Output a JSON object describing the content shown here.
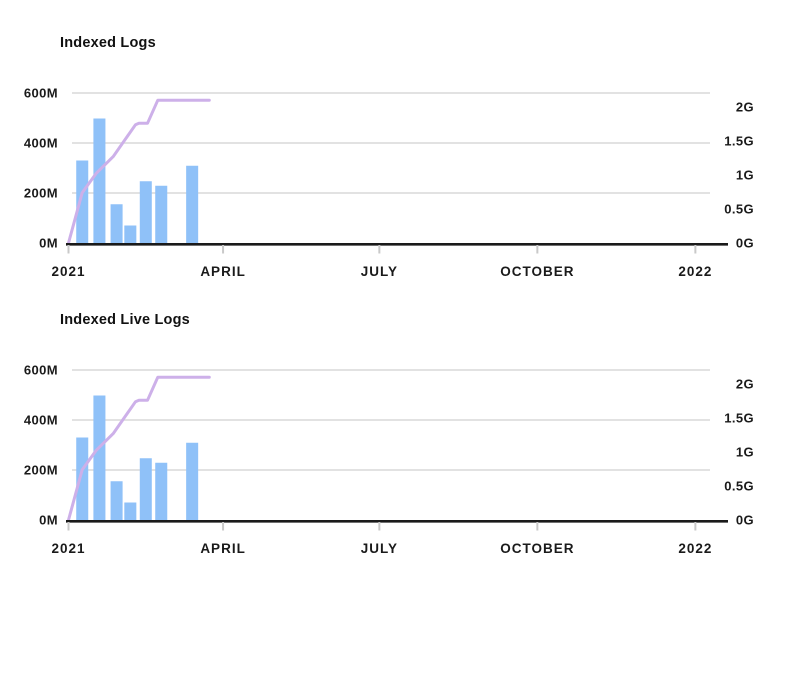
{
  "page": {
    "background": "#FFFFFF"
  },
  "colors": {
    "bar": "#8FC1F8",
    "line": "#CDB0E9",
    "gridline": "#D9D9D9",
    "axis_line": "#1A1A1A",
    "tick_mark": "#C9C9C9",
    "label": "#1A1A1A",
    "title": "#111111",
    "background": "#FFFFFF"
  },
  "chart_data": [
    {
      "type": "bar+line",
      "title": "Indexed Logs",
      "grid": "horizontal-only",
      "legend": "none",
      "x_axis": {
        "range_days": [
          0,
          384
        ],
        "ticks": [
          {
            "label": "2021",
            "day": 0
          },
          {
            "label": "APRIL",
            "day": 90
          },
          {
            "label": "JULY",
            "day": 181
          },
          {
            "label": "OCTOBER",
            "day": 273
          },
          {
            "label": "2022",
            "day": 365
          }
        ]
      },
      "left_axis": {
        "unit": "M",
        "range_m": [
          0,
          620
        ],
        "ticks": [
          {
            "label": "0M",
            "value_m": 0
          },
          {
            "label": "200M",
            "value_m": 200
          },
          {
            "label": "400M",
            "value_m": 400
          },
          {
            "label": "600M",
            "value_m": 600
          }
        ]
      },
      "right_axis": {
        "unit": "G",
        "m_per_g": 272,
        "ticks": [
          {
            "label": "0G",
            "value_g": 0
          },
          {
            "label": "0.5G",
            "value_g": 0.5
          },
          {
            "label": "1G",
            "value_g": 1
          },
          {
            "label": "1.5G",
            "value_g": 1.5
          },
          {
            "label": "2G",
            "value_g": 2
          }
        ]
      },
      "bars": {
        "name": "indexed-log-events",
        "axis": "left",
        "color": "#8FC1F8",
        "width_days": 7,
        "points": [
          {
            "day": 8,
            "value_m": 330
          },
          {
            "day": 18,
            "value_m": 498
          },
          {
            "day": 28,
            "value_m": 155
          },
          {
            "day": 36,
            "value_m": 70
          },
          {
            "day": 45,
            "value_m": 247
          },
          {
            "day": 54,
            "value_m": 229
          },
          {
            "day": 72,
            "value_m": 309
          }
        ]
      },
      "line": {
        "name": "cumulative-indexed-volume",
        "axis": "right",
        "color": "#CDB0E9",
        "points": [
          {
            "day": 0,
            "value_g": 0
          },
          {
            "day": 8,
            "value_g": 0.74
          },
          {
            "day": 16,
            "value_g": 1.02
          },
          {
            "day": 26,
            "value_g": 1.27
          },
          {
            "day": 39,
            "value_g": 1.74
          },
          {
            "day": 41,
            "value_g": 1.76
          },
          {
            "day": 46,
            "value_g": 1.76
          },
          {
            "day": 52,
            "value_g": 2.1
          },
          {
            "day": 82,
            "value_g": 2.1
          }
        ]
      }
    },
    {
      "type": "bar+line",
      "title": "Indexed Live Logs",
      "grid": "horizontal-only",
      "legend": "none",
      "x_axis": {
        "range_days": [
          0,
          384
        ],
        "ticks": [
          {
            "label": "2021",
            "day": 0
          },
          {
            "label": "APRIL",
            "day": 90
          },
          {
            "label": "JULY",
            "day": 181
          },
          {
            "label": "OCTOBER",
            "day": 273
          },
          {
            "label": "2022",
            "day": 365
          }
        ]
      },
      "left_axis": {
        "unit": "M",
        "range_m": [
          0,
          620
        ],
        "ticks": [
          {
            "label": "0M",
            "value_m": 0
          },
          {
            "label": "200M",
            "value_m": 200
          },
          {
            "label": "400M",
            "value_m": 400
          },
          {
            "label": "600M",
            "value_m": 600
          }
        ]
      },
      "right_axis": {
        "unit": "G",
        "m_per_g": 272,
        "ticks": [
          {
            "label": "0G",
            "value_g": 0
          },
          {
            "label": "0.5G",
            "value_g": 0.5
          },
          {
            "label": "1G",
            "value_g": 1
          },
          {
            "label": "1.5G",
            "value_g": 1.5
          },
          {
            "label": "2G",
            "value_g": 2
          }
        ]
      },
      "bars": {
        "name": "indexed-live-log-events",
        "axis": "left",
        "color": "#8FC1F8",
        "width_days": 7,
        "points": [
          {
            "day": 8,
            "value_m": 330
          },
          {
            "day": 18,
            "value_m": 498
          },
          {
            "day": 28,
            "value_m": 155
          },
          {
            "day": 36,
            "value_m": 70
          },
          {
            "day": 45,
            "value_m": 247
          },
          {
            "day": 54,
            "value_m": 229
          },
          {
            "day": 72,
            "value_m": 309
          }
        ]
      },
      "line": {
        "name": "cumulative-indexed-live-volume",
        "axis": "right",
        "color": "#CDB0E9",
        "points": [
          {
            "day": 0,
            "value_g": 0
          },
          {
            "day": 8,
            "value_g": 0.74
          },
          {
            "day": 16,
            "value_g": 1.02
          },
          {
            "day": 26,
            "value_g": 1.27
          },
          {
            "day": 39,
            "value_g": 1.74
          },
          {
            "day": 41,
            "value_g": 1.76
          },
          {
            "day": 46,
            "value_g": 1.76
          },
          {
            "day": 52,
            "value_g": 2.1
          },
          {
            "day": 82,
            "value_g": 2.1
          }
        ]
      }
    }
  ]
}
